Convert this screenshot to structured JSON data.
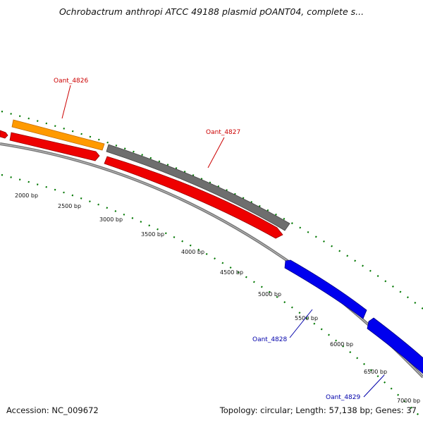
{
  "title": "Ochrobactrum anthropi ATCC 49188 plasmid pOANT04, complete s...",
  "footer": {
    "accession": "Accession: NC_009672",
    "summary": "Topology: circular; Length: 57,138 bp; Genes: 37"
  },
  "bp_labels": [
    "2000 bp",
    "2500 bp",
    "3000 bp",
    "3500 bp",
    "4000 bp",
    "4500 bp",
    "5000 bp",
    "5500 bp",
    "6000 bp",
    "6500 bp",
    "7000 bp"
  ],
  "genes": [
    {
      "name": "Oant_4826",
      "color": "#cc0000"
    },
    {
      "name": "Oant_4827",
      "color": "#cc0000"
    },
    {
      "name": "Oant_4828",
      "color": "#0000aa"
    },
    {
      "name": "Oant_4829",
      "color": "#0000aa"
    }
  ],
  "colors": {
    "orange_feature": "#ff9900",
    "gray_feature": "#666666",
    "red_feature": "#ee0000",
    "blue_feature": "#0000ee",
    "backbone": "#888888",
    "tick": "#007700"
  }
}
